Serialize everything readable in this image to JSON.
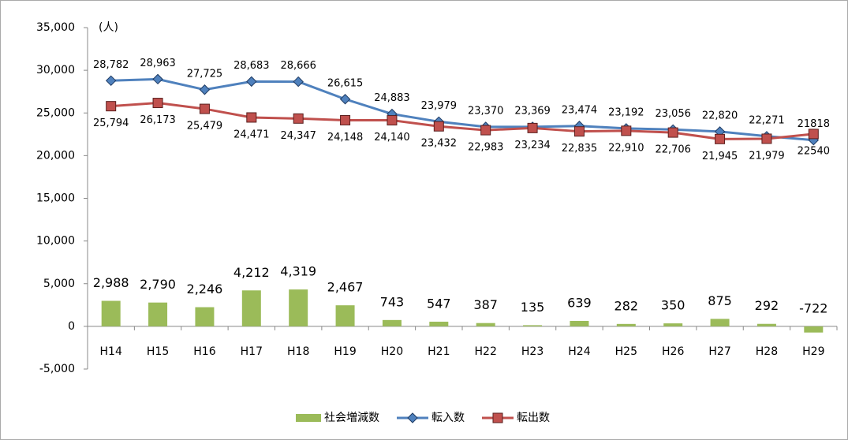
{
  "chart_data": {
    "type": "combo",
    "unit_label": "(人)",
    "categories": [
      "H14",
      "H15",
      "H16",
      "H17",
      "H18",
      "H19",
      "H20",
      "H21",
      "H22",
      "H23",
      "H24",
      "H25",
      "H26",
      "H27",
      "H28",
      "H29"
    ],
    "ylim": [
      -5000,
      35000
    ],
    "yticks": [
      {
        "value": -5000,
        "label": "-5,000"
      },
      0,
      {
        "value": 5000,
        "label": "5,000"
      },
      {
        "value": 10000,
        "label": "10,000"
      },
      {
        "value": 15000,
        "label": "15,000"
      },
      {
        "value": 20000,
        "label": "20,000"
      },
      {
        "value": 25000,
        "label": "25,000"
      },
      {
        "value": 30000,
        "label": "30,000"
      },
      {
        "value": 35000,
        "label": "35,000"
      }
    ],
    "negative_label_color": "#ff0000",
    "series": [
      {
        "name": "社会増減数",
        "type": "bar",
        "color": "#9bbb59",
        "values": [
          2988,
          2790,
          2246,
          4212,
          4319,
          2467,
          743,
          547,
          387,
          135,
          639,
          282,
          350,
          875,
          292,
          -722
        ],
        "value_labels": [
          "2,988",
          "2,790",
          "2,246",
          "4,212",
          "4,319",
          "2,467",
          "743",
          "547",
          "387",
          "135",
          "639",
          "282",
          "350",
          "875",
          "292",
          "-722"
        ]
      },
      {
        "name": "転入数",
        "type": "line",
        "marker": "diamond",
        "color": "#4f81bd",
        "label_side": "above",
        "values": [
          28782,
          28963,
          27725,
          28683,
          28666,
          26615,
          24883,
          23979,
          23370,
          23369,
          23474,
          23192,
          23056,
          22820,
          22271,
          21818
        ],
        "value_labels": [
          "28,782",
          "28,963",
          "27,725",
          "28,683",
          "28,666",
          "26,615",
          "24,883",
          "23,979",
          "23,370",
          "23,369",
          "23,474",
          "23,192",
          "23,056",
          "22,820",
          "22,271",
          "21818"
        ]
      },
      {
        "name": "転出数",
        "type": "line",
        "marker": "square",
        "color": "#c0504d",
        "label_side": "below",
        "values": [
          25794,
          26173,
          25479,
          24471,
          24347,
          24148,
          24140,
          23432,
          22983,
          23234,
          22835,
          22910,
          22706,
          21945,
          21979,
          22540
        ],
        "value_labels": [
          "25,794",
          "26,173",
          "25,479",
          "24,471",
          "24,347",
          "24,148",
          "24,140",
          "23,432",
          "22,983",
          "23,234",
          "22,835",
          "22,910",
          "22,706",
          "21,945",
          "21,979",
          "22540"
        ]
      }
    ]
  }
}
